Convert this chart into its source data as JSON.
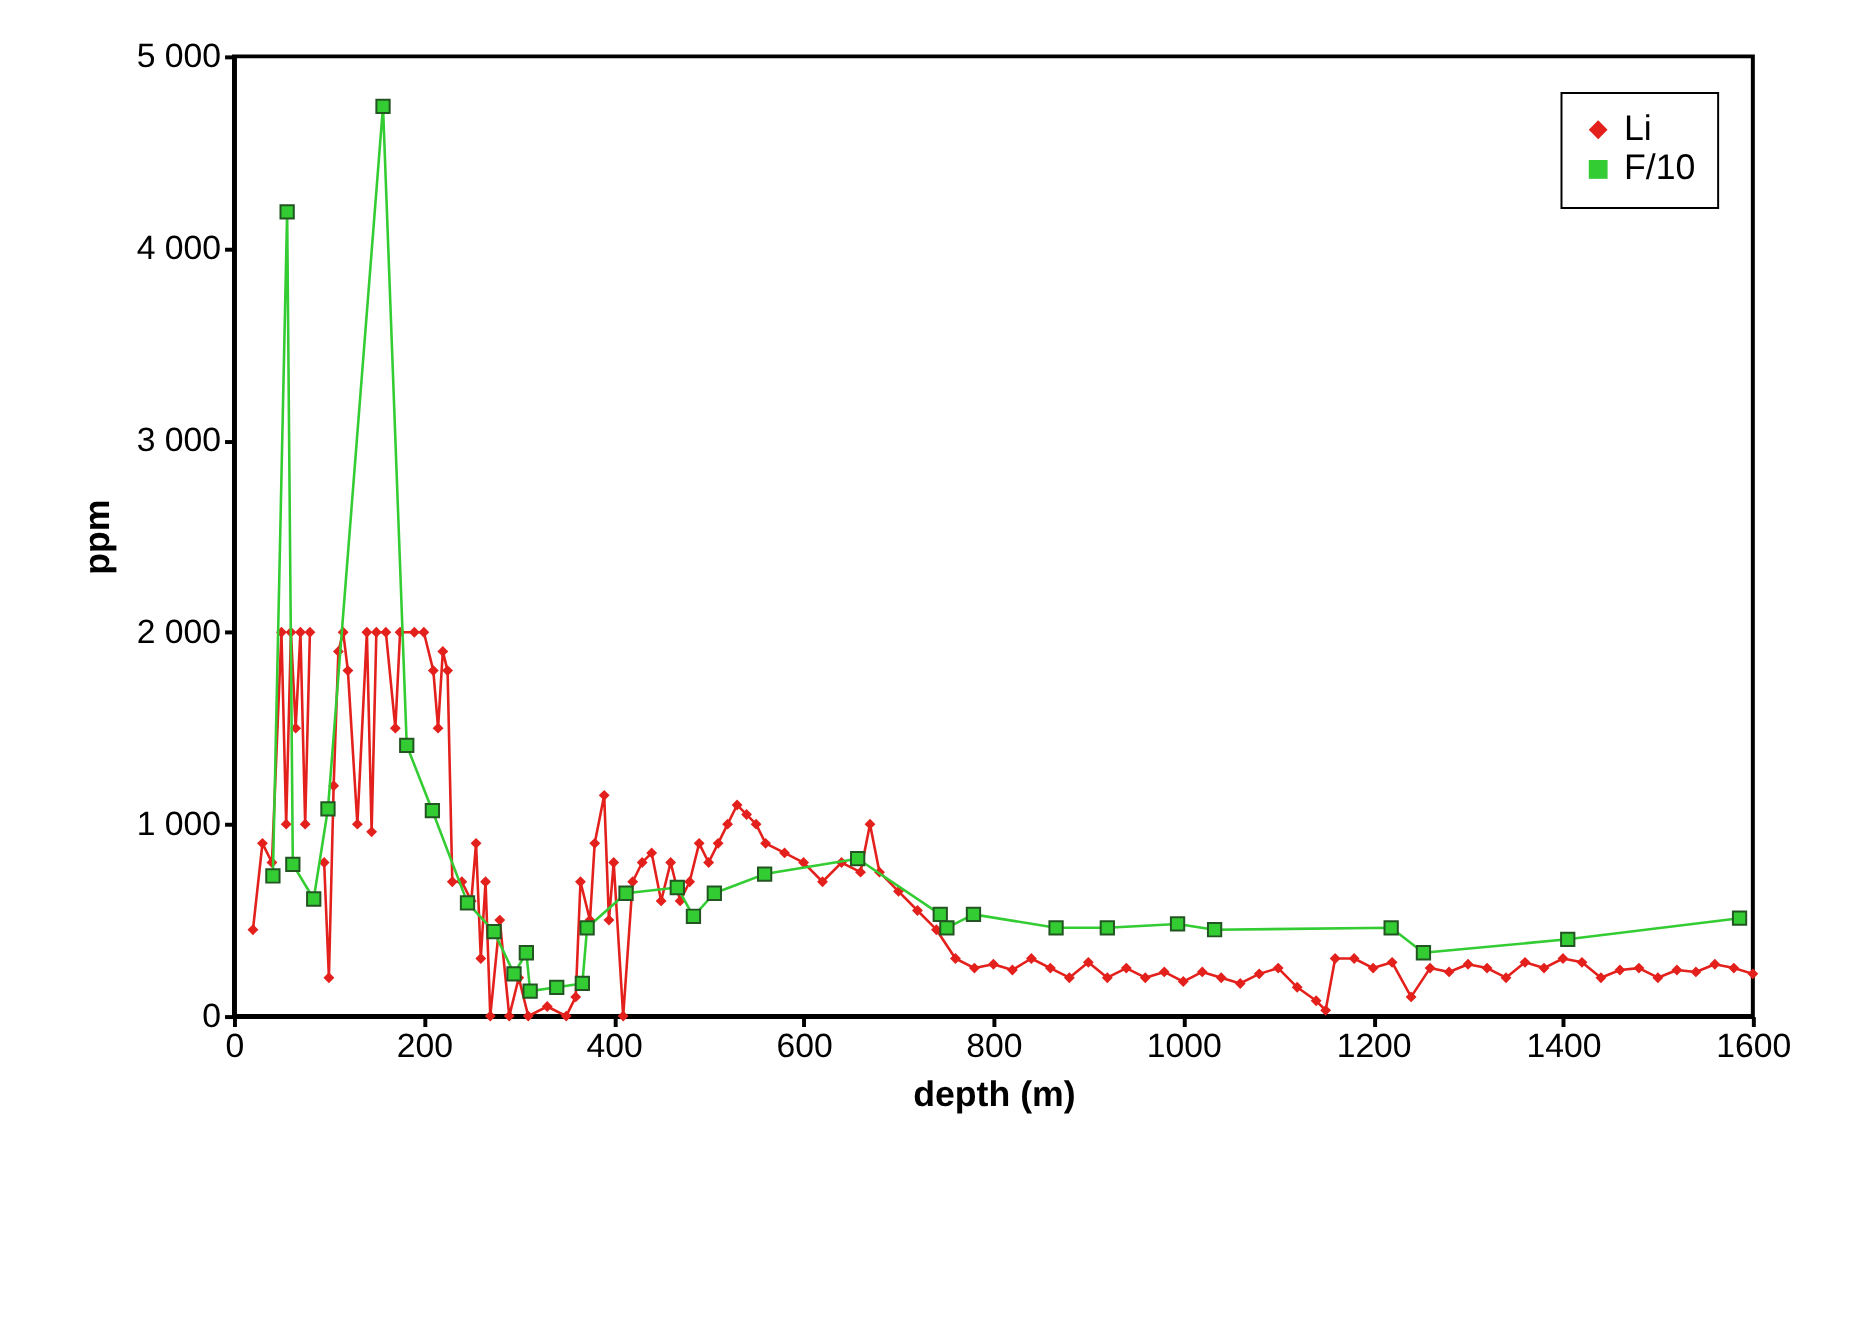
{
  "chart_data": {
    "type": "line",
    "xlabel": "depth (m)",
    "ylabel": "ppm",
    "xlim": [
      0,
      1600
    ],
    "xticks": [
      0,
      200,
      400,
      600,
      800,
      1000,
      1200,
      1400,
      1600
    ],
    "ylim": [
      0,
      5000
    ],
    "yticks": [
      0,
      {
        "value": 1000,
        "label": "1 000"
      },
      {
        "value": 2000,
        "label": "2 000"
      },
      {
        "value": 3000,
        "label": "3 000"
      },
      {
        "value": 4000,
        "label": "4 000"
      },
      {
        "value": 5000,
        "label": "5 000"
      }
    ],
    "grid": false,
    "legend": "top right",
    "series": [
      {
        "name": "Li",
        "color": "#e3201c",
        "marker": "diamond",
        "line_style": "solid",
        "x": [
          20,
          30,
          40,
          50,
          55,
          60,
          65,
          70,
          75,
          80,
          85,
          95,
          100,
          105,
          110,
          115,
          120,
          130,
          140,
          145,
          150,
          160,
          170,
          175,
          190,
          200,
          210,
          215,
          220,
          225,
          230,
          240,
          250,
          255,
          260,
          265,
          270,
          280,
          290,
          300,
          310,
          330,
          350,
          360,
          365,
          375,
          380,
          390,
          395,
          400,
          410,
          420,
          430,
          440,
          450,
          460,
          470,
          480,
          490,
          500,
          510,
          520,
          530,
          540,
          550,
          560,
          580,
          600,
          620,
          640,
          660,
          670,
          680,
          700,
          720,
          740,
          760,
          780,
          800,
          820,
          840,
          860,
          880,
          900,
          920,
          940,
          960,
          980,
          1000,
          1020,
          1040,
          1060,
          1080,
          1100,
          1120,
          1140,
          1150,
          1160,
          1180,
          1200,
          1220,
          1240,
          1260,
          1280,
          1300,
          1320,
          1340,
          1360,
          1380,
          1400,
          1420,
          1440,
          1460,
          1480,
          1500,
          1520,
          1540,
          1560,
          1580,
          1600
        ],
        "values": [
          450,
          900,
          800,
          2000,
          1000,
          2000,
          1500,
          2000,
          1000,
          2000,
          null,
          800,
          200,
          1200,
          1900,
          2000,
          1800,
          1000,
          2000,
          960,
          2000,
          2000,
          1500,
          2000,
          2000,
          2000,
          1800,
          1500,
          1900,
          1800,
          700,
          700,
          600,
          900,
          300,
          700,
          0,
          500,
          0,
          200,
          0,
          50,
          0,
          100,
          700,
          500,
          900,
          1150,
          500,
          800,
          0,
          700,
          800,
          850,
          600,
          800,
          600,
          700,
          900,
          800,
          900,
          1000,
          1100,
          1050,
          1000,
          900,
          850,
          800,
          700,
          800,
          750,
          1000,
          750,
          650,
          550,
          450,
          300,
          250,
          270,
          240,
          300,
          250,
          200,
          280,
          200,
          250,
          200,
          230,
          180,
          230,
          200,
          170,
          220,
          250,
          150,
          80,
          30,
          300,
          300,
          250,
          280,
          100,
          250,
          230,
          270,
          250,
          200,
          280,
          250,
          300,
          280,
          200,
          240,
          250,
          200,
          240,
          230,
          270,
          250,
          220
        ]
      },
      {
        "name": "F/10",
        "color": "#33cc33",
        "marker": "square",
        "line_style": "solid",
        "x": [
          41,
          56,
          62,
          84,
          99,
          157,
          182,
          209,
          246,
          274,
          295,
          308,
          312,
          340,
          367,
          372,
          413,
          467,
          484,
          506,
          559,
          657,
          744,
          751,
          779,
          866,
          920,
          994,
          1033,
          1219,
          1253,
          1405,
          1586
        ],
        "values": [
          730,
          4190,
          790,
          610,
          1080,
          4740,
          1410,
          1070,
          590,
          440,
          220,
          330,
          130,
          150,
          170,
          460,
          640,
          670,
          520,
          640,
          740,
          820,
          530,
          460,
          530,
          460,
          460,
          480,
          450,
          460,
          330,
          400,
          510
        ]
      }
    ]
  }
}
